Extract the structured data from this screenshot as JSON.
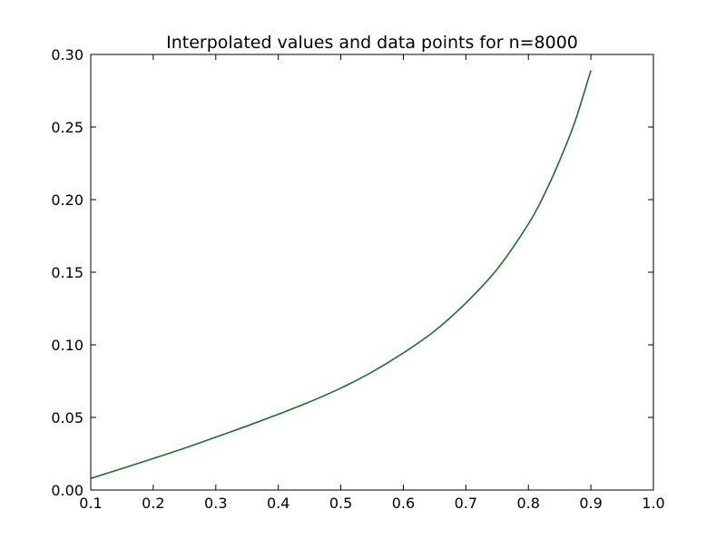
{
  "chart_data": {
    "type": "line",
    "title": "Interpolated values and data points for n=8000",
    "xlabel": "",
    "ylabel": "",
    "xlim": [
      0.1,
      1.0
    ],
    "ylim": [
      0.0,
      0.3
    ],
    "x_ticks": [
      "0.1",
      "0.2",
      "0.3",
      "0.4",
      "0.5",
      "0.6",
      "0.7",
      "0.8",
      "0.9",
      "1.0"
    ],
    "y_ticks": [
      "0.00",
      "0.05",
      "0.10",
      "0.15",
      "0.20",
      "0.25",
      "0.30"
    ],
    "grid": false,
    "legend": "none",
    "series": [
      {
        "color": "#1f6e2e",
        "x": [
          0.1,
          0.15,
          0.2,
          0.25,
          0.3,
          0.35,
          0.4,
          0.45,
          0.5,
          0.55,
          0.6,
          0.65,
          0.7,
          0.75,
          0.8,
          0.825,
          0.85,
          0.875,
          0.9
        ],
        "y": [
          0.008,
          0.0148,
          0.0217,
          0.0288,
          0.0364,
          0.0441,
          0.0522,
          0.0607,
          0.0702,
          0.0813,
          0.0944,
          0.1095,
          0.1288,
          0.1521,
          0.1832,
          0.2031,
          0.2269,
          0.2543,
          0.289
        ]
      }
    ]
  }
}
